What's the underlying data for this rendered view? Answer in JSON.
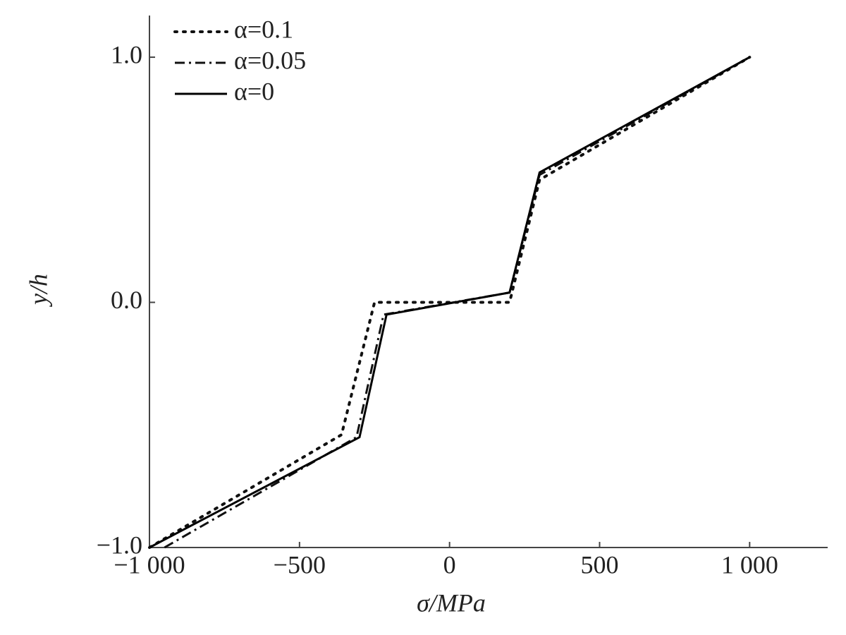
{
  "chart_data": {
    "type": "line",
    "x_label": "σ/MPa",
    "y_label": "y/h",
    "xlim": [
      -1000,
      1260
    ],
    "ylim": [
      -1.0,
      1.17
    ],
    "xticks": [
      {
        "value": -1000,
        "label": "−1 000"
      },
      {
        "value": -500,
        "label": "−500"
      },
      0,
      500,
      {
        "value": 1000,
        "label": "1 000"
      }
    ],
    "yticks": [
      {
        "value": -1.0,
        "label": "−1.0"
      },
      {
        "value": 0,
        "label": "0.0"
      },
      {
        "value": 1.0,
        "label": "1.0"
      }
    ],
    "legend": "upper left",
    "series": [
      {
        "name": "α=0.1",
        "color": "#111",
        "dash": "dotted",
        "x": [
          -1000,
          -360,
          -250,
          200,
          300,
          1000
        ],
        "values": [
          -1.0,
          -0.54,
          0.0,
          0.0,
          0.5,
          1.0
        ]
      },
      {
        "name": "α=0.05",
        "color": "#111",
        "dash": "dashdot",
        "x": [
          -950,
          -310,
          -220,
          200,
          300,
          1000
        ],
        "values": [
          -1.0,
          -0.55,
          -0.05,
          0.04,
          0.52,
          1.0
        ]
      },
      {
        "name": "α=0",
        "color": "#000",
        "dash": "solid",
        "x": [
          -1000,
          -300,
          -210,
          200,
          300,
          1000
        ],
        "values": [
          -1.0,
          -0.55,
          -0.05,
          0.04,
          0.53,
          1.0
        ]
      }
    ]
  }
}
